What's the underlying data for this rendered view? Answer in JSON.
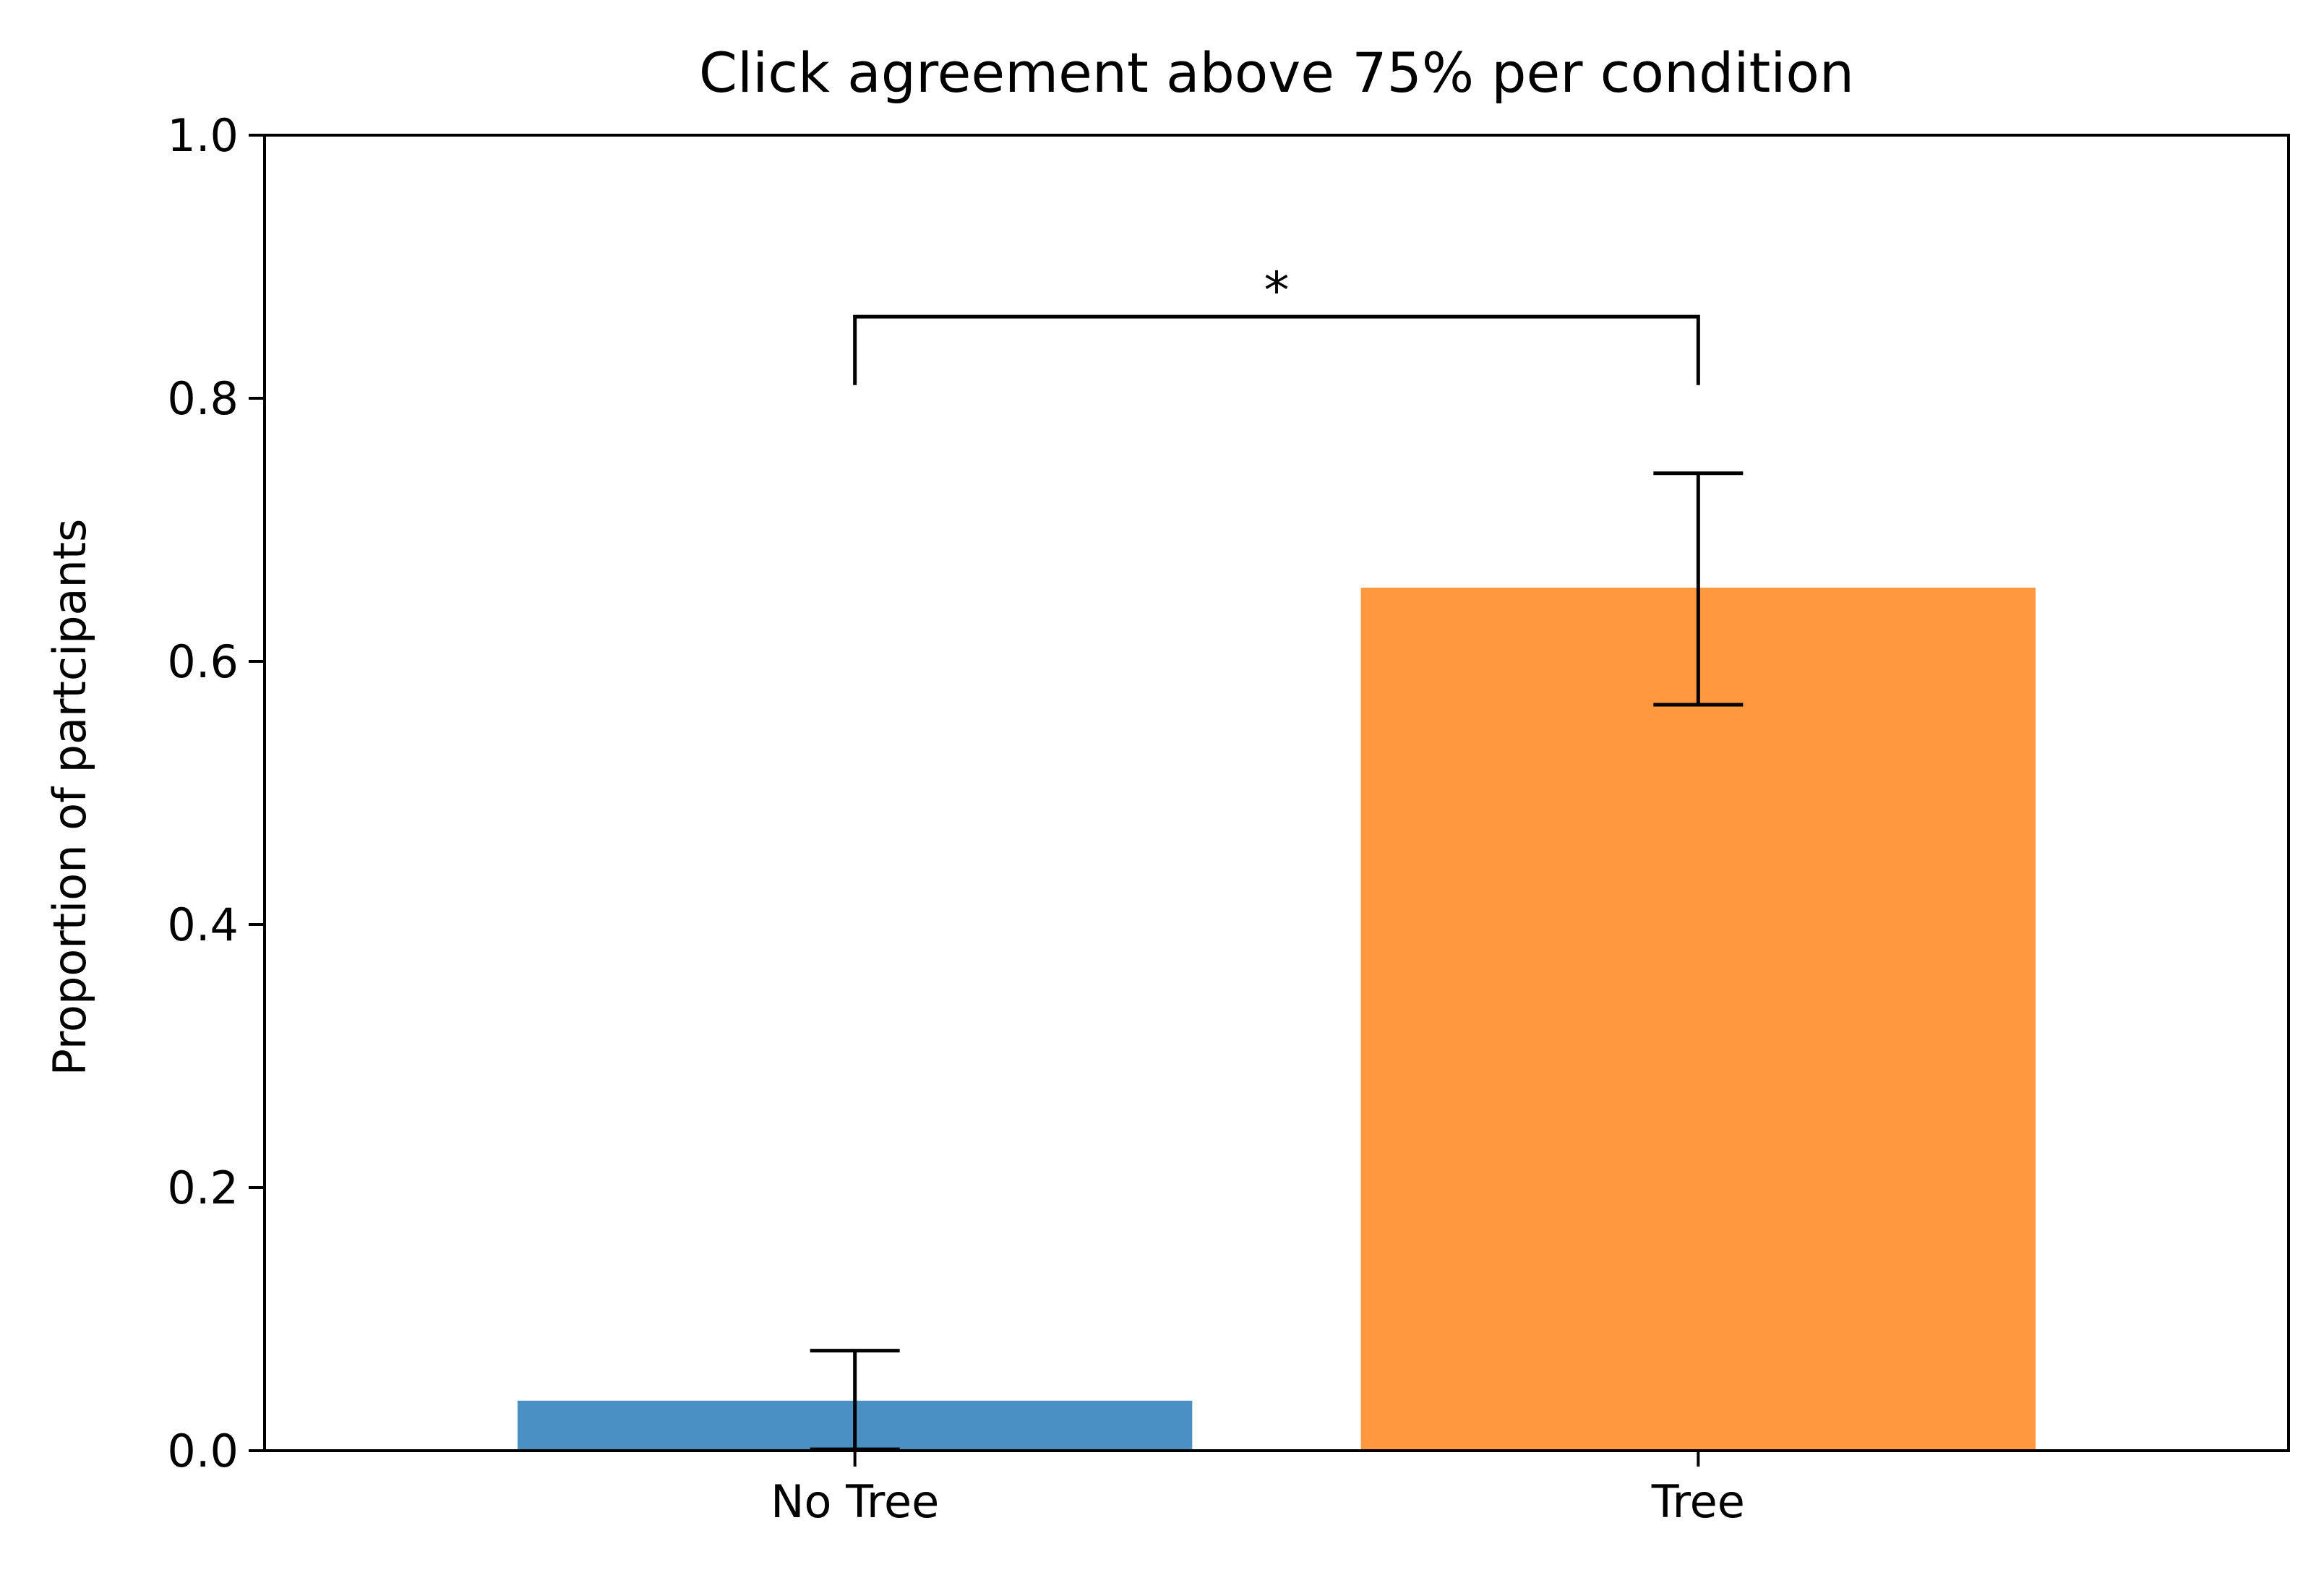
{
  "chart_data": {
    "type": "bar",
    "title": "Click agreement above 75% per condition",
    "xlabel": "",
    "ylabel": "Proportion of partcipants",
    "categories": [
      "No Tree",
      "Tree"
    ],
    "values": [
      0.038,
      0.656
    ],
    "error_bars": [
      [
        0.001,
        0.076
      ],
      [
        0.567,
        0.743
      ]
    ],
    "colors": [
      "#4a90c2",
      "#ff983e"
    ],
    "ylim": [
      0,
      1.0
    ],
    "yticks": [
      "0.0",
      "0.2",
      "0.4",
      "0.6",
      "0.8",
      "1.0"
    ],
    "grid": false,
    "significance": {
      "between": [
        "No Tree",
        "Tree"
      ],
      "symbol": "*",
      "bracket_level": 0.862,
      "bracket_drop": 0.81
    }
  }
}
